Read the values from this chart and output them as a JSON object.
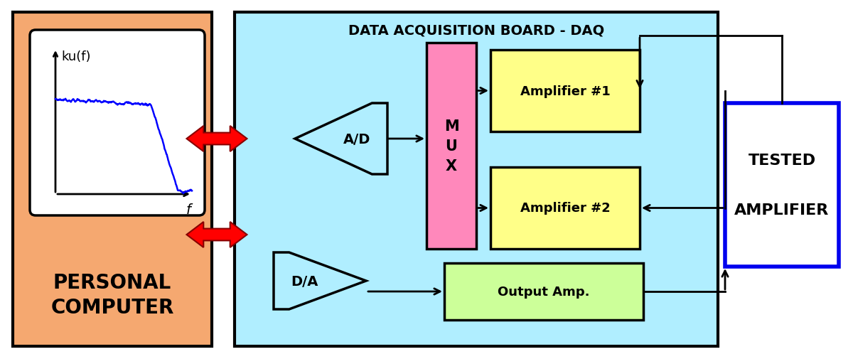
{
  "bg_color": "#ffffff",
  "pc_bg": "#f5a870",
  "daq_bg": "#b0eeff",
  "graph_bg": "#ffffff",
  "amp1_bg": "#ffff88",
  "amp2_bg": "#ffff88",
  "output_amp_bg": "#ccff99",
  "mux_bg": "#ff88bb",
  "tested_amp_border": "#0000ee",
  "title": "DATA ACQUISITION BOARD - DAQ",
  "pc_label1": "PERSONAL",
  "pc_label2": "COMPUTER",
  "tested_label1": "TESTED",
  "tested_label2": "AMPLIFIER",
  "amp1_label": "Amplifier #1",
  "amp2_label": "Amplifier #2",
  "output_amp_label": "Output Amp.",
  "mux_label": "M\nU\nX",
  "ad_label": "A/D",
  "da_label": "D/A",
  "graph_xlabel": "f",
  "graph_ylabel": "ku(f)"
}
